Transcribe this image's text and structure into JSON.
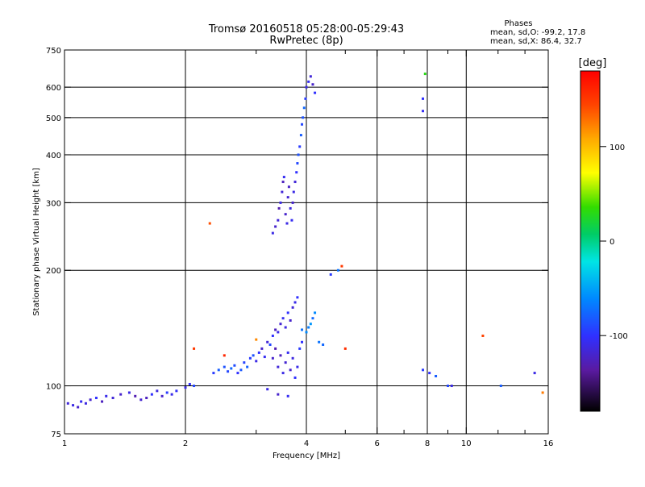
{
  "chart_data": {
    "type": "scatter",
    "title_line1": "Tromsø 20160518 05:28:00-05:29:43",
    "title_line2": "RwPretec (8p)",
    "stats": {
      "heading": "Phases",
      "line1": "mean, sd,O: -99.2, 17.8",
      "line2": "mean, sd,X:  86.4, 32.7"
    },
    "xlabel": "Frequency [MHz]",
    "ylabel": "Stationary phase Virtual Height [km]",
    "x_scale": "log",
    "y_scale": "log",
    "xlim": [
      1,
      16
    ],
    "ylim": [
      75,
      750
    ],
    "x_major_ticks": [
      1,
      2,
      4,
      6,
      8,
      10,
      16
    ],
    "x_minor_ticks": [
      3,
      5,
      7,
      9,
      12,
      14
    ],
    "y_ticks": [
      75,
      100,
      200,
      300,
      400,
      500,
      600,
      750
    ],
    "grid": true,
    "colorbar": {
      "label": "[deg]",
      "range": [
        -180,
        180
      ],
      "ticks": [
        100,
        0,
        -100
      ]
    },
    "series": [
      {
        "points": [
          [
            1.02,
            90,
            -115
          ],
          [
            1.05,
            89,
            -110
          ],
          [
            1.08,
            88,
            -120
          ],
          [
            1.1,
            91,
            -105
          ],
          [
            1.13,
            90,
            -112
          ],
          [
            1.16,
            92,
            -118
          ],
          [
            1.2,
            93,
            -100
          ],
          [
            1.24,
            91,
            -125
          ],
          [
            1.27,
            94,
            -108
          ],
          [
            1.32,
            93,
            -115
          ],
          [
            1.38,
            95,
            -120
          ],
          [
            1.45,
            96,
            -110
          ],
          [
            1.5,
            94,
            -130
          ],
          [
            1.55,
            92,
            -118
          ],
          [
            1.6,
            93,
            -125
          ],
          [
            1.65,
            95,
            -100
          ],
          [
            1.7,
            97,
            -112
          ],
          [
            1.75,
            94,
            -120
          ],
          [
            1.8,
            96,
            -95
          ],
          [
            1.85,
            95,
            -108
          ],
          [
            1.9,
            97,
            -102
          ],
          [
            2.0,
            99,
            -110
          ],
          [
            2.05,
            101,
            -100
          ],
          [
            2.1,
            100,
            -90
          ],
          [
            2.35,
            108,
            -95
          ],
          [
            2.42,
            110,
            -80
          ],
          [
            2.5,
            112,
            -85
          ],
          [
            2.55,
            109,
            -90
          ],
          [
            2.6,
            111,
            -75
          ],
          [
            2.65,
            113,
            -88
          ],
          [
            2.7,
            108,
            -100
          ],
          [
            2.75,
            110,
            -82
          ],
          [
            2.8,
            115,
            -92
          ],
          [
            2.85,
            112,
            -78
          ],
          [
            2.9,
            118,
            -95
          ],
          [
            2.95,
            120,
            -85
          ],
          [
            3.0,
            116,
            -110
          ],
          [
            3.05,
            122,
            -100
          ],
          [
            3.1,
            125,
            -120
          ],
          [
            3.15,
            119,
            -105
          ],
          [
            3.2,
            130,
            -115
          ],
          [
            3.25,
            128,
            -90
          ],
          [
            3.3,
            135,
            -100
          ],
          [
            3.35,
            140,
            -125
          ],
          [
            3.4,
            138,
            -110
          ],
          [
            3.45,
            145,
            -118
          ],
          [
            3.5,
            150,
            -105
          ],
          [
            3.55,
            142,
            -112
          ],
          [
            3.6,
            155,
            -100
          ],
          [
            3.65,
            148,
            -120
          ],
          [
            3.7,
            160,
            -115
          ],
          [
            3.75,
            165,
            -108
          ],
          [
            3.8,
            170,
            -100
          ],
          [
            3.3,
            118,
            -120
          ],
          [
            3.35,
            125,
            -130
          ],
          [
            3.4,
            112,
            -115
          ],
          [
            3.45,
            120,
            -125
          ],
          [
            3.5,
            108,
            -110
          ],
          [
            3.55,
            115,
            -118
          ],
          [
            3.6,
            122,
            -105
          ],
          [
            3.65,
            110,
            -120
          ],
          [
            3.7,
            118,
            -112
          ],
          [
            3.75,
            105,
            -100
          ],
          [
            3.8,
            112,
            -108
          ],
          [
            3.85,
            125,
            -95
          ],
          [
            3.9,
            130,
            -100
          ],
          [
            3.2,
            98,
            -110
          ],
          [
            3.4,
            95,
            -120
          ],
          [
            3.6,
            94,
            -105
          ],
          [
            3.9,
            140,
            -70
          ],
          [
            4.0,
            138,
            -60
          ],
          [
            4.05,
            142,
            -65
          ],
          [
            4.1,
            145,
            -55
          ],
          [
            4.15,
            150,
            -75
          ],
          [
            4.2,
            155,
            -60
          ],
          [
            4.3,
            130,
            -70
          ],
          [
            4.4,
            128,
            -75
          ],
          [
            3.3,
            250,
            -110
          ],
          [
            3.35,
            260,
            -120
          ],
          [
            3.4,
            270,
            -115
          ],
          [
            3.42,
            290,
            -130
          ],
          [
            3.45,
            300,
            -110
          ],
          [
            3.48,
            320,
            -115
          ],
          [
            3.5,
            340,
            -125
          ],
          [
            3.52,
            350,
            -105
          ],
          [
            3.55,
            280,
            -120
          ],
          [
            3.58,
            265,
            -110
          ],
          [
            3.6,
            310,
            -118
          ],
          [
            3.62,
            330,
            -122
          ],
          [
            3.65,
            290,
            -112
          ],
          [
            3.68,
            270,
            -105
          ],
          [
            3.7,
            300,
            -120
          ],
          [
            3.72,
            320,
            -110
          ],
          [
            3.75,
            340,
            -115
          ],
          [
            3.78,
            360,
            -100
          ],
          [
            3.8,
            380,
            -90
          ],
          [
            3.82,
            400,
            -85
          ],
          [
            3.85,
            420,
            -95
          ],
          [
            3.88,
            450,
            -80
          ],
          [
            3.9,
            480,
            -90
          ],
          [
            3.92,
            500,
            -85
          ],
          [
            3.95,
            530,
            -75
          ],
          [
            3.98,
            560,
            -95
          ],
          [
            4.0,
            600,
            -110
          ],
          [
            4.05,
            620,
            -105
          ],
          [
            4.1,
            640,
            -115
          ],
          [
            4.15,
            610,
            -120
          ],
          [
            4.2,
            580,
            -100
          ],
          [
            4.6,
            195,
            -95
          ],
          [
            4.8,
            200,
            -70
          ],
          [
            7.8,
            520,
            -105
          ],
          [
            7.8,
            560,
            -100
          ],
          [
            7.9,
            650,
            30
          ],
          [
            7.8,
            110,
            -95
          ],
          [
            8.1,
            108,
            -100
          ],
          [
            8.4,
            106,
            -80
          ],
          [
            9.0,
            100,
            -90
          ],
          [
            9.2,
            100,
            -110
          ],
          [
            12.2,
            100,
            -80
          ],
          [
            14.8,
            108,
            -110
          ],
          [
            2.3,
            265,
            140
          ],
          [
            2.1,
            125,
            150
          ],
          [
            2.5,
            120,
            160
          ],
          [
            4.9,
            205,
            150
          ],
          [
            5.0,
            125,
            155
          ],
          [
            11.0,
            135,
            145
          ],
          [
            15.5,
            96,
            125
          ],
          [
            3.0,
            132,
            120
          ]
        ]
      }
    ]
  }
}
